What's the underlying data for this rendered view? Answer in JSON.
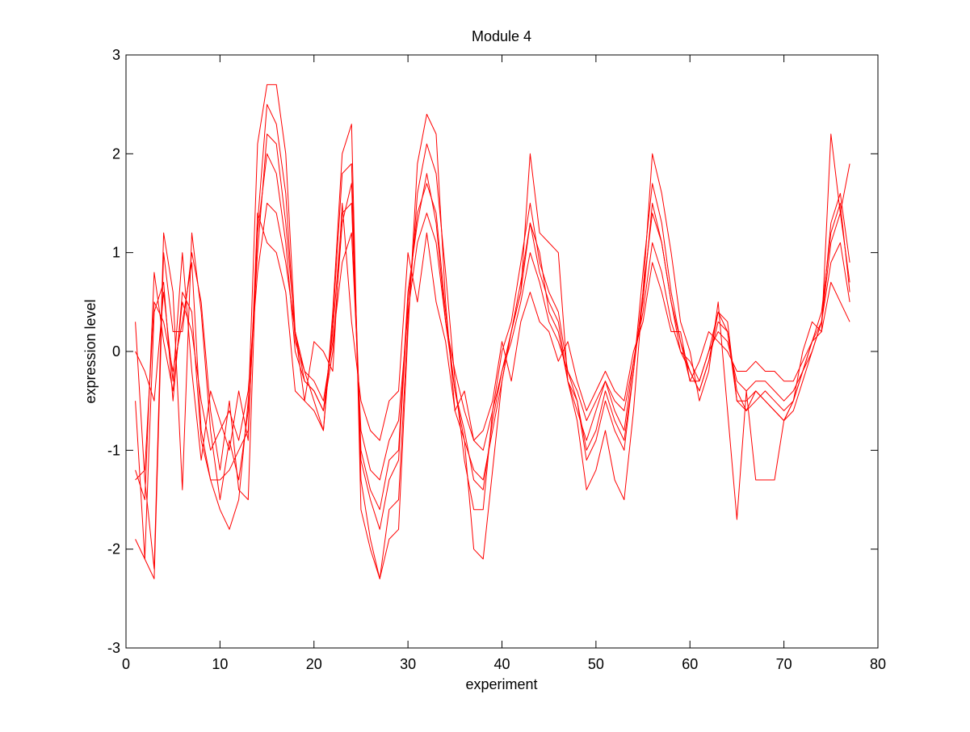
{
  "colors": {
    "line": "#ff0000",
    "axes": "#000000",
    "background": "#ffffff"
  },
  "chart_data": {
    "type": "line",
    "title": "Module 4",
    "xlabel": "experiment",
    "ylabel": "expression level",
    "xlim": [
      0,
      80
    ],
    "ylim": [
      -3,
      3
    ],
    "xticks": [
      0,
      10,
      20,
      30,
      40,
      50,
      60,
      70,
      80
    ],
    "yticks": [
      -3,
      -2,
      -1,
      0,
      1,
      2,
      3
    ],
    "grid": false,
    "legend": "none",
    "x": [
      1,
      2,
      3,
      4,
      5,
      6,
      7,
      8,
      9,
      10,
      11,
      12,
      13,
      14,
      15,
      16,
      17,
      18,
      19,
      20,
      21,
      22,
      23,
      24,
      25,
      26,
      27,
      28,
      29,
      30,
      31,
      32,
      33,
      34,
      35,
      36,
      37,
      38,
      39,
      40,
      41,
      42,
      43,
      44,
      45,
      46,
      47,
      48,
      49,
      50,
      51,
      52,
      53,
      54,
      55,
      56,
      57,
      58,
      59,
      60,
      61,
      62,
      63,
      64,
      65,
      66,
      67,
      68,
      69,
      70,
      71,
      72,
      73,
      74,
      75,
      76,
      77
    ],
    "series": [
      {
        "values": [
          0.3,
          -1.3,
          -2.2,
          1.2,
          0.6,
          -1.4,
          1.2,
          0.4,
          -0.8,
          -1.5,
          -0.9,
          -1.3,
          -0.6,
          2.1,
          2.7,
          2.7,
          2.0,
          0.2,
          -0.5,
          -0.6,
          -0.8,
          0.4,
          2.0,
          2.3,
          -1.6,
          -2.0,
          -2.3,
          -1.9,
          -1.8,
          0.2,
          1.9,
          2.4,
          2.2,
          0.5,
          -0.6,
          -0.9,
          -2.0,
          -2.1,
          -1.2,
          -0.3,
          0.2,
          0.6,
          2.0,
          1.2,
          1.1,
          1.0,
          -0.3,
          -0.7,
          -1.4,
          -1.2,
          -0.8,
          -1.3,
          -1.5,
          -0.6,
          0.6,
          2.0,
          1.6,
          1.0,
          0.3,
          0.0,
          -0.5,
          -0.2,
          0.5,
          -0.6,
          -1.7,
          -0.4,
          -1.3,
          -1.3,
          -1.3,
          -0.7,
          -0.5,
          0.0,
          0.3,
          0.2,
          2.2,
          1.4,
          1.9
        ]
      },
      {
        "values": [
          -0.5,
          -2.1,
          -2.3,
          1.0,
          0.2,
          0.2,
          1.0,
          0.5,
          -0.6,
          -1.2,
          -0.5,
          -1.4,
          -1.5,
          1.3,
          2.5,
          2.3,
          1.6,
          0.1,
          -0.2,
          -0.5,
          -0.8,
          0.3,
          1.8,
          1.9,
          -1.3,
          -1.9,
          -2.3,
          -1.6,
          -1.5,
          0.3,
          1.6,
          2.1,
          1.8,
          0.8,
          -0.3,
          -1.1,
          -1.6,
          -1.6,
          -0.6,
          0.0,
          0.3,
          0.9,
          1.5,
          0.9,
          0.6,
          0.4,
          -0.2,
          -0.5,
          -1.1,
          -0.9,
          -0.5,
          -0.8,
          -1.0,
          -0.2,
          0.8,
          1.7,
          1.3,
          0.6,
          0.1,
          -0.3,
          -0.3,
          0.0,
          0.4,
          0.3,
          -0.5,
          -0.6,
          -0.4,
          -0.5,
          -0.6,
          -0.7,
          -0.6,
          -0.3,
          0.0,
          0.3,
          1.3,
          1.6,
          0.9
        ]
      },
      {
        "values": [
          -1.3,
          -1.2,
          0.5,
          0.3,
          -0.2,
          0.3,
          0.9,
          -0.8,
          -1.3,
          -1.6,
          -1.8,
          -1.5,
          -0.5,
          1.0,
          2.2,
          2.1,
          1.3,
          0.2,
          -0.3,
          -0.4,
          -0.6,
          0.0,
          1.3,
          1.7,
          -1.0,
          -1.4,
          -1.6,
          -1.1,
          -1.0,
          0.6,
          1.3,
          1.8,
          1.3,
          0.3,
          -0.4,
          -0.9,
          -1.2,
          -1.3,
          -0.8,
          -0.3,
          0.2,
          0.7,
          1.3,
          1.0,
          0.4,
          0.2,
          -0.3,
          -0.6,
          -0.9,
          -0.6,
          -0.3,
          -0.6,
          -0.8,
          -0.1,
          0.5,
          1.5,
          1.1,
          0.5,
          0.0,
          -0.2,
          -0.4,
          -0.1,
          0.3,
          0.2,
          -0.4,
          -0.6,
          -0.5,
          -0.4,
          -0.5,
          -0.6,
          -0.5,
          -0.2,
          0.1,
          0.4,
          1.2,
          1.5,
          0.6
        ]
      },
      {
        "values": [
          -1.2,
          -1.5,
          0.8,
          0.1,
          -0.4,
          0.5,
          0.2,
          -0.5,
          -1.0,
          -0.8,
          -0.6,
          -0.9,
          -0.4,
          0.8,
          1.5,
          1.4,
          0.9,
          0.2,
          -0.2,
          -0.3,
          -0.5,
          0.1,
          0.9,
          1.2,
          -0.8,
          -1.2,
          -1.3,
          -0.9,
          -0.7,
          0.4,
          1.1,
          1.4,
          1.1,
          0.3,
          -0.2,
          -0.6,
          -0.9,
          -1.0,
          -0.6,
          -0.2,
          0.1,
          0.5,
          1.0,
          0.7,
          0.3,
          0.1,
          -0.2,
          -0.4,
          -0.7,
          -0.5,
          -0.3,
          -0.5,
          -0.6,
          -0.1,
          0.4,
          1.1,
          0.8,
          0.3,
          0.0,
          -0.1,
          -0.3,
          0.0,
          0.2,
          0.1,
          -0.3,
          -0.4,
          -0.3,
          -0.3,
          -0.4,
          -0.5,
          -0.4,
          -0.2,
          0.1,
          0.3,
          0.9,
          1.1,
          0.5
        ]
      },
      {
        "values": [
          0.0,
          -0.2,
          -0.5,
          0.6,
          -0.3,
          1.0,
          -0.2,
          -1.1,
          -0.4,
          -0.7,
          -1.0,
          -0.4,
          -0.9,
          1.4,
          1.1,
          1.0,
          0.6,
          -0.4,
          -0.5,
          0.1,
          0.0,
          -0.2,
          1.5,
          0.3,
          -0.5,
          -0.8,
          -0.9,
          -0.5,
          -0.4,
          1.0,
          0.5,
          1.2,
          0.5,
          0.1,
          -0.6,
          -0.4,
          -0.9,
          -0.8,
          -0.5,
          0.1,
          -0.3,
          0.3,
          0.6,
          0.3,
          0.2,
          -0.1,
          0.1,
          -0.3,
          -0.6,
          -0.4,
          -0.2,
          -0.4,
          -0.5,
          0.0,
          0.3,
          0.9,
          0.6,
          0.2,
          0.2,
          -0.3,
          -0.1,
          0.2,
          0.1,
          0.0,
          -0.2,
          -0.2,
          -0.1,
          -0.2,
          -0.2,
          -0.3,
          -0.3,
          -0.1,
          0.1,
          0.2,
          0.7,
          0.5,
          0.3
        ]
      },
      {
        "values": [
          -1.9,
          -2.1,
          0.4,
          0.7,
          -0.5,
          0.6,
          0.4,
          -0.9,
          -1.3,
          -1.3,
          -1.2,
          -1.0,
          -0.8,
          1.2,
          2.0,
          1.8,
          1.1,
          0.0,
          -0.3,
          -0.4,
          -0.6,
          0.2,
          1.4,
          1.5,
          -1.1,
          -1.5,
          -1.8,
          -1.3,
          -1.1,
          0.5,
          1.4,
          1.7,
          1.4,
          0.4,
          -0.4,
          -0.8,
          -1.3,
          -1.4,
          -0.7,
          -0.2,
          0.2,
          0.6,
          1.3,
          0.8,
          0.5,
          0.3,
          -0.3,
          -0.5,
          -1.0,
          -0.8,
          -0.4,
          -0.7,
          -0.9,
          -0.2,
          0.6,
          1.4,
          1.1,
          0.5,
          0.1,
          -0.2,
          -0.4,
          -0.1,
          0.4,
          0.2,
          -0.5,
          -0.5,
          -0.4,
          -0.5,
          -0.6,
          -0.7,
          -0.5,
          -0.2,
          0.0,
          0.3,
          1.1,
          1.4,
          0.7
        ]
      }
    ]
  }
}
